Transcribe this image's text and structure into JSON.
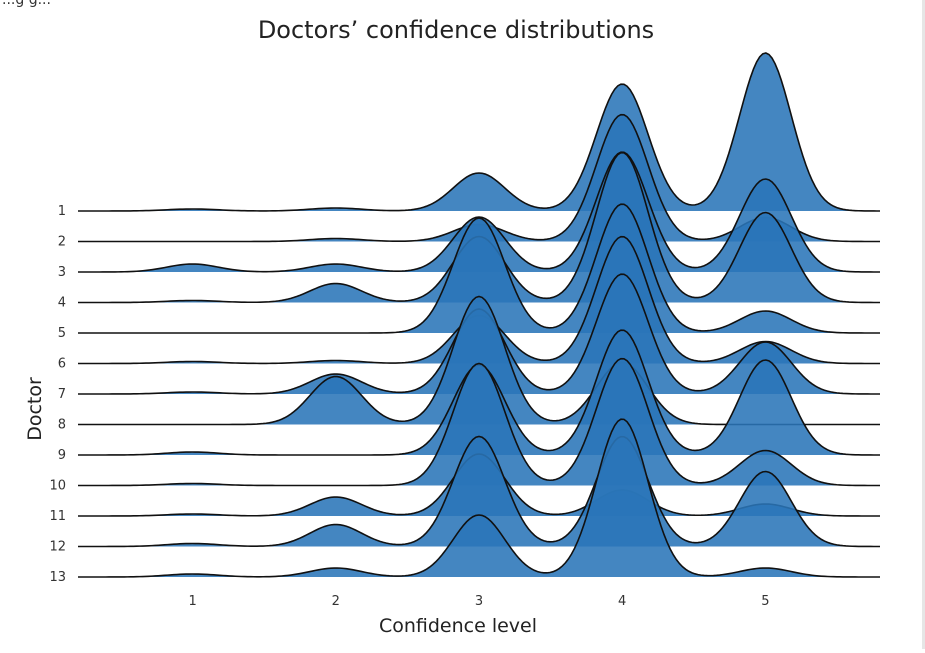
{
  "corner_text": "...g g...",
  "chart_data": {
    "type": "ridgeline",
    "title": "Doctors’ confidence distributions",
    "xlabel": "Confidence level",
    "ylabel": "Doctor",
    "xlim": [
      0.2,
      5.8
    ],
    "xticks": [
      "1",
      "2",
      "3",
      "4",
      "5"
    ],
    "grid": false,
    "fill_color": "#2a75b8",
    "line_color": "#111111",
    "series": [
      {
        "name": "1",
        "peaks": [
          {
            "x": 1,
            "h": 0.02
          },
          {
            "x": 2,
            "h": 0.03
          },
          {
            "x": 3,
            "h": 0.38
          },
          {
            "x": 4,
            "h": 1.27
          },
          {
            "x": 5,
            "h": 1.58
          }
        ]
      },
      {
        "name": "2",
        "peaks": [
          {
            "x": 2,
            "h": 0.03
          },
          {
            "x": 3,
            "h": 0.17
          },
          {
            "x": 4,
            "h": 1.27
          },
          {
            "x": 5,
            "h": 0.24
          }
        ]
      },
      {
        "name": "3",
        "peaks": [
          {
            "x": 1,
            "h": 0.08
          },
          {
            "x": 2,
            "h": 0.08
          },
          {
            "x": 3,
            "h": 0.55
          },
          {
            "x": 4,
            "h": 1.2
          },
          {
            "x": 5,
            "h": 0.93
          }
        ]
      },
      {
        "name": "4",
        "peaks": [
          {
            "x": 1,
            "h": 0.02
          },
          {
            "x": 2,
            "h": 0.19
          },
          {
            "x": 3,
            "h": 0.66
          },
          {
            "x": 4,
            "h": 1.5
          },
          {
            "x": 5,
            "h": 0.9
          }
        ]
      },
      {
        "name": "5",
        "peaks": [
          {
            "x": 3,
            "h": 1.15
          },
          {
            "x": 4,
            "h": 1.29
          },
          {
            "x": 5,
            "h": 0.22
          }
        ]
      },
      {
        "name": "6",
        "peaks": [
          {
            "x": 1,
            "h": 0.02
          },
          {
            "x": 2,
            "h": 0.03
          },
          {
            "x": 3,
            "h": 0.48
          },
          {
            "x": 4,
            "h": 1.27
          },
          {
            "x": 5,
            "h": 0.22
          }
        ]
      },
      {
        "name": "7",
        "peaks": [
          {
            "x": 1,
            "h": 0.02
          },
          {
            "x": 2,
            "h": 0.2
          },
          {
            "x": 3,
            "h": 0.85
          },
          {
            "x": 4,
            "h": 1.2
          },
          {
            "x": 5,
            "h": 0.52
          }
        ]
      },
      {
        "name": "8",
        "peaks": [
          {
            "x": 2,
            "h": 0.48
          },
          {
            "x": 3,
            "h": 1.28
          },
          {
            "x": 4,
            "h": 0.62
          }
        ]
      },
      {
        "name": "9",
        "peaks": [
          {
            "x": 1,
            "h": 0.03
          },
          {
            "x": 3,
            "h": 0.9
          },
          {
            "x": 4,
            "h": 1.25
          },
          {
            "x": 5,
            "h": 0.95
          }
        ]
      },
      {
        "name": "10",
        "peaks": [
          {
            "x": 1,
            "h": 0.02
          },
          {
            "x": 3,
            "h": 1.22
          },
          {
            "x": 4,
            "h": 1.27
          },
          {
            "x": 5,
            "h": 0.35
          }
        ]
      },
      {
        "name": "11",
        "peaks": [
          {
            "x": 1,
            "h": 0.02
          },
          {
            "x": 2,
            "h": 0.19
          },
          {
            "x": 3,
            "h": 0.62
          },
          {
            "x": 4,
            "h": 0.26
          },
          {
            "x": 5,
            "h": 0.12
          }
        ]
      },
      {
        "name": "12",
        "peaks": [
          {
            "x": 1,
            "h": 0.03
          },
          {
            "x": 2,
            "h": 0.22
          },
          {
            "x": 3,
            "h": 1.1
          },
          {
            "x": 4,
            "h": 1.1
          },
          {
            "x": 5,
            "h": 0.75
          }
        ]
      },
      {
        "name": "13",
        "peaks": [
          {
            "x": 1,
            "h": 0.03
          },
          {
            "x": 2,
            "h": 0.09
          },
          {
            "x": 3,
            "h": 0.62
          },
          {
            "x": 4,
            "h": 1.58
          },
          {
            "x": 5,
            "h": 0.09
          }
        ]
      }
    ]
  }
}
